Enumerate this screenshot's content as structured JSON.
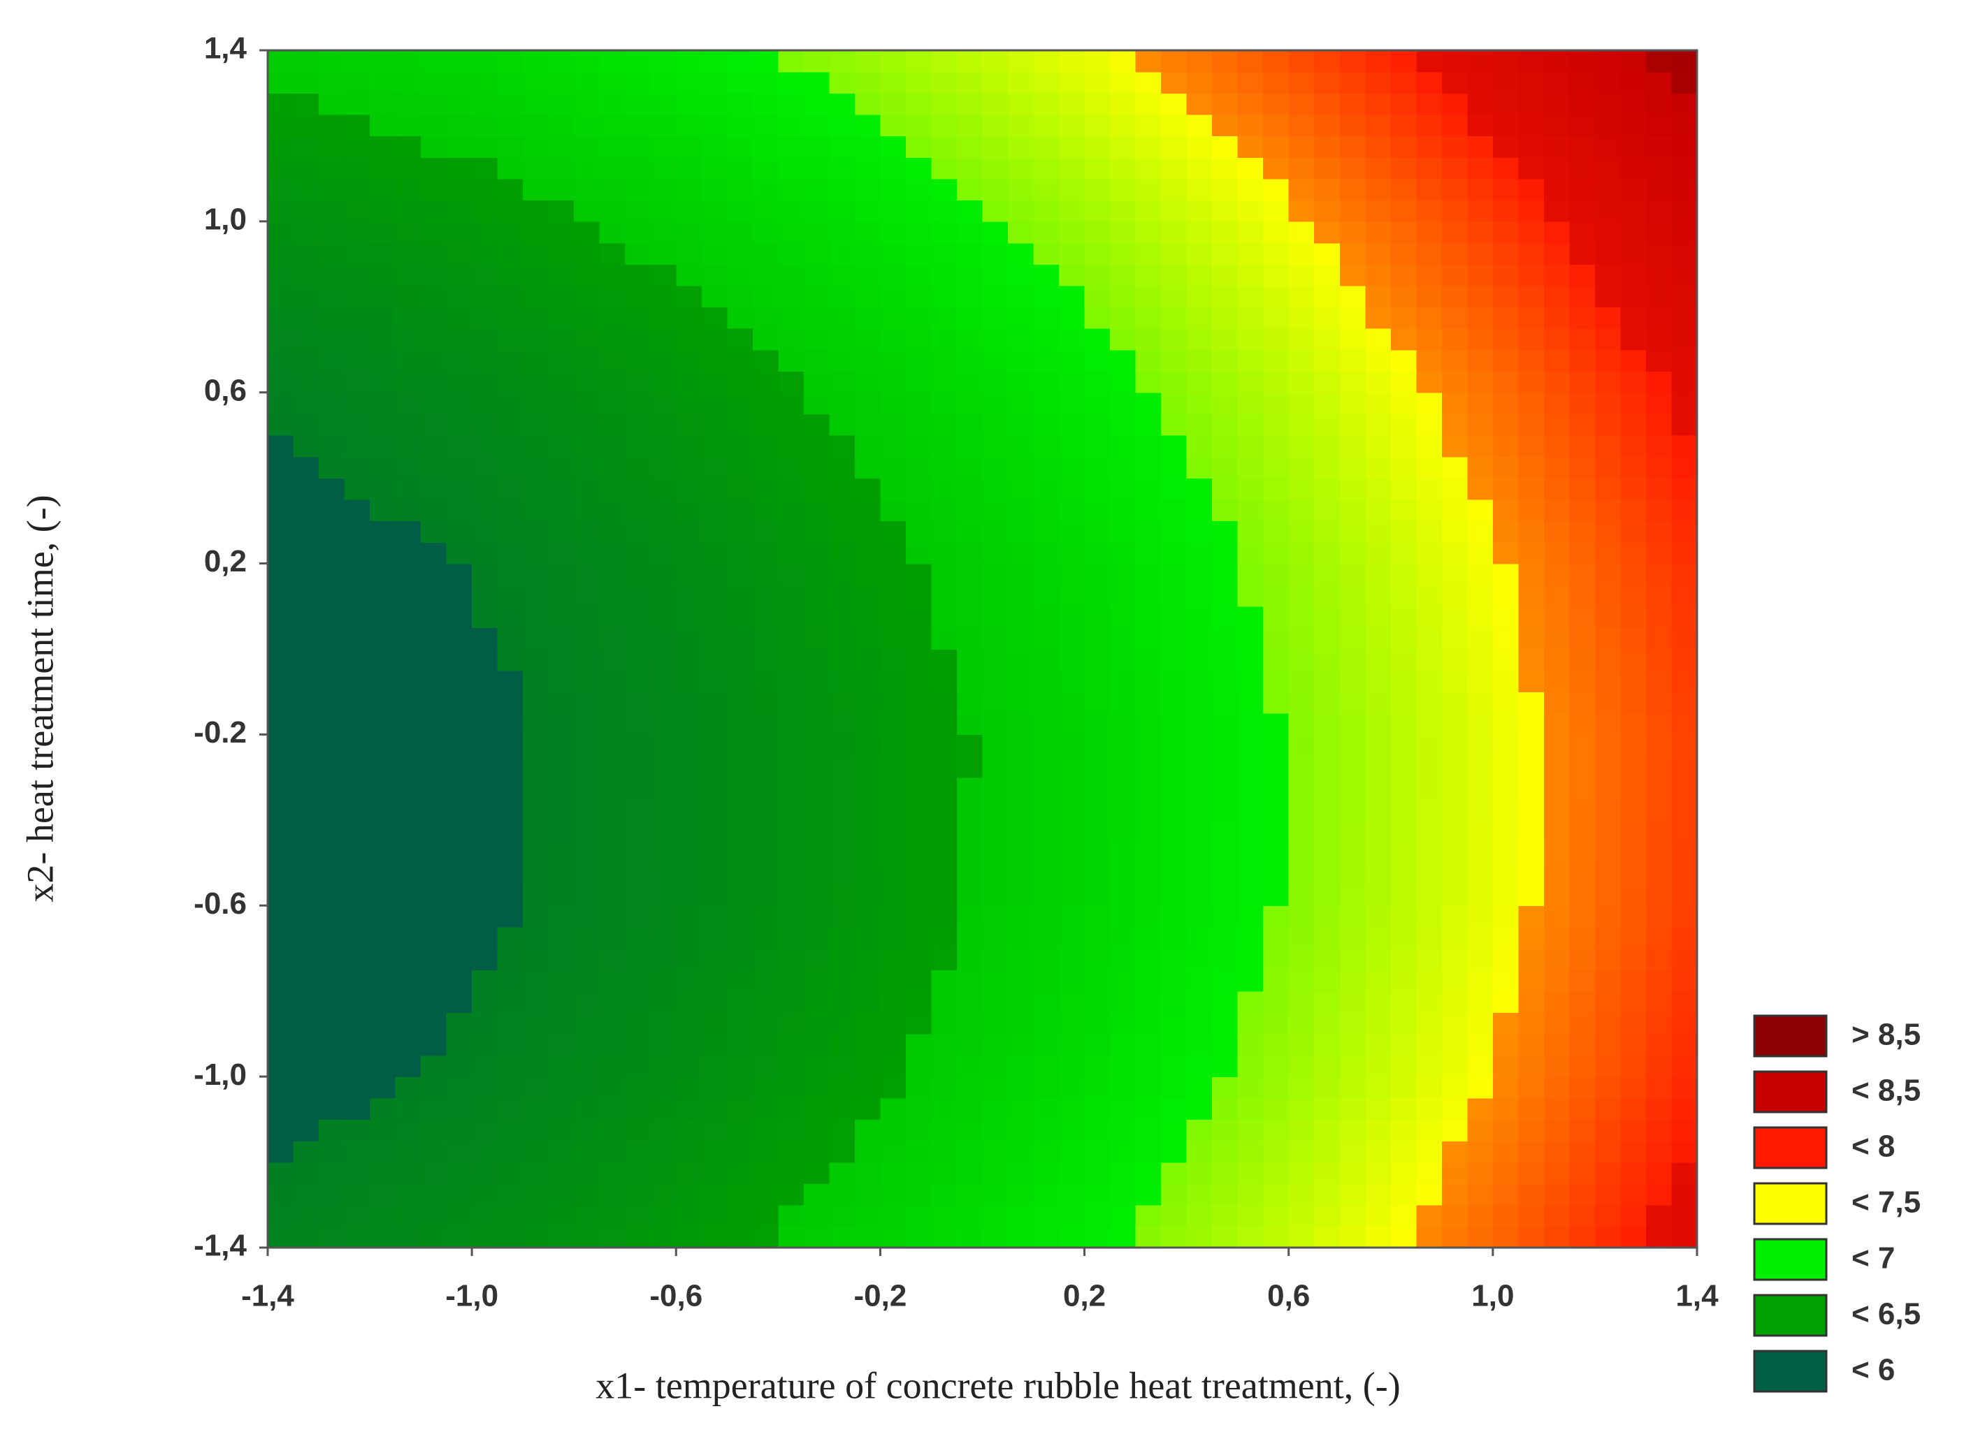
{
  "chart_data": {
    "type": "contour",
    "x_label": "x1- temperature of concrete rubble heat treatment, (-)",
    "y_label": "x2- heat treatment time, (-)",
    "x": [
      -1.4,
      -1.0,
      -0.6,
      -0.2,
      0.2,
      0.6,
      1.0,
      1.4
    ],
    "y": [
      -1.4,
      -1.0,
      -0.6,
      -0.2,
      0.2,
      0.6,
      1.0,
      1.4
    ],
    "z": [
      [
        6.08,
        6.21,
        6.4,
        6.64,
        6.93,
        7.28,
        7.67,
        8.12
      ],
      [
        5.91,
        6.04,
        6.23,
        6.47,
        6.76,
        7.11,
        7.5,
        7.95
      ],
      [
        5.82,
        5.95,
        6.14,
        6.38,
        6.67,
        7.02,
        7.41,
        7.86
      ],
      [
        5.81,
        5.94,
        6.13,
        6.37,
        6.66,
        7.01,
        7.4,
        7.85
      ],
      [
        5.88,
        6.01,
        6.2,
        6.44,
        6.73,
        7.08,
        7.47,
        7.92
      ],
      [
        6.03,
        6.16,
        6.35,
        6.59,
        6.88,
        7.23,
        7.62,
        8.07
      ],
      [
        6.26,
        6.39,
        6.58,
        6.82,
        7.11,
        7.46,
        7.85,
        8.3
      ],
      [
        6.57,
        6.7,
        6.89,
        7.13,
        7.42,
        7.77,
        8.16,
        8.61
      ]
    ],
    "xlim": [
      -1.4,
      1.4
    ],
    "ylim": [
      -1.4,
      1.4
    ],
    "xticks": [
      {
        "value": -1.4,
        "label": "-1,4"
      },
      {
        "value": -1.0,
        "label": "-1,0"
      },
      {
        "value": -0.6,
        "label": "-0,6"
      },
      {
        "value": -0.2,
        "label": "-0,2"
      },
      {
        "value": 0.2,
        "label": "0,2"
      },
      {
        "value": 0.6,
        "label": "0,6"
      },
      {
        "value": 1.0,
        "label": "1,0"
      },
      {
        "value": 1.4,
        "label": "1,4"
      }
    ],
    "yticks": [
      {
        "value": -1.4,
        "label": "-1,4"
      },
      {
        "value": -1.0,
        "label": "-1,0"
      },
      {
        "value": -0.6,
        "label": "-0.6"
      },
      {
        "value": -0.2,
        "label": "-0.2"
      },
      {
        "value": 0.2,
        "label": "0,2"
      },
      {
        "value": 0.6,
        "label": "0,6"
      },
      {
        "value": 1.0,
        "label": "1,0"
      },
      {
        "value": 1.4,
        "label": "1,4"
      }
    ],
    "legend": [
      {
        "label": "> 8,5",
        "value": 8.5,
        "color": "#8b0000"
      },
      {
        "label": "< 8,5",
        "value": 8.5,
        "color": "#c80000"
      },
      {
        "label": "< 8",
        "value": 8,
        "color": "#ff1a00"
      },
      {
        "label": "< 7,5",
        "value": 7.5,
        "color": "#ffff00"
      },
      {
        "label": "< 7",
        "value": 7,
        "color": "#00f000"
      },
      {
        "label": "< 6,5",
        "value": 6.5,
        "color": "#00a000"
      },
      {
        "label": "< 6",
        "value": 6,
        "color": "#005e45"
      }
    ]
  }
}
